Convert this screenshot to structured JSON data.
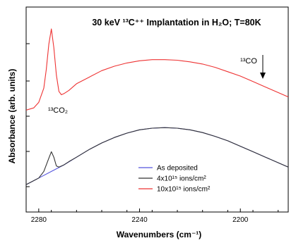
{
  "chart_data": {
    "type": "line",
    "title": "30 keV ¹³C⁺⁺ Implantation in H₂O; T=80K",
    "xlabel": "Wavenumbers (cm⁻¹)",
    "ylabel": "Absorbance (arb. units)",
    "xlim": [
      2285,
      2181
    ],
    "x_reversed": true,
    "x_ticks": [
      2280,
      2240,
      2200
    ],
    "x_tick_labels": [
      "2280",
      "2240",
      "2200"
    ],
    "y_ticklabels_shown": false,
    "legend_position": "bottom-right",
    "annotations": [
      {
        "text": "¹³CO",
        "note_arrow": "down"
      },
      {
        "text": "¹³CO₂"
      }
    ],
    "series": [
      {
        "name": "As deposited",
        "color": "#5555dd",
        "x": [
          2285,
          2280,
          2275,
          2270,
          2265,
          2260,
          2255,
          2250,
          2245,
          2240,
          2235,
          2230,
          2225,
          2220,
          2215,
          2210,
          2205,
          2200,
          2195,
          2190,
          2185,
          2181
        ],
        "y": [
          0.1,
          0.16,
          0.22,
          0.28,
          0.35,
          0.42,
          0.48,
          0.53,
          0.57,
          0.6,
          0.615,
          0.62,
          0.615,
          0.6,
          0.575,
          0.54,
          0.5,
          0.45,
          0.4,
          0.35,
          0.3,
          0.26
        ]
      },
      {
        "name": "4x10¹⁵ ions/cm²",
        "color": "#333333",
        "x": [
          2285,
          2280,
          2278,
          2276,
          2275,
          2274,
          2273,
          2272,
          2270,
          2268,
          2265,
          2260,
          2255,
          2250,
          2245,
          2240,
          2235,
          2230,
          2225,
          2220,
          2215,
          2210,
          2205,
          2200,
          2195,
          2190,
          2185,
          2181
        ],
        "y": [
          0.1,
          0.16,
          0.22,
          0.34,
          0.4,
          0.35,
          0.27,
          0.26,
          0.28,
          0.31,
          0.35,
          0.42,
          0.48,
          0.53,
          0.57,
          0.6,
          0.615,
          0.62,
          0.615,
          0.6,
          0.575,
          0.54,
          0.5,
          0.45,
          0.4,
          0.35,
          0.3,
          0.26
        ]
      },
      {
        "name": "10x10¹⁵ ions/cm²",
        "color": "#ee3333",
        "x": [
          2285,
          2282,
          2280,
          2278,
          2277,
          2276,
          2275,
          2274,
          2273,
          2272,
          2271,
          2270,
          2268,
          2265,
          2260,
          2255,
          2250,
          2245,
          2240,
          2235,
          2230,
          2225,
          2220,
          2215,
          2210,
          2205,
          2200,
          2195,
          2190,
          2185,
          2181
        ],
        "y": [
          0.78,
          0.8,
          0.85,
          0.98,
          1.15,
          1.38,
          1.52,
          1.35,
          1.1,
          0.95,
          0.92,
          0.93,
          0.96,
          1.02,
          1.08,
          1.14,
          1.18,
          1.21,
          1.23,
          1.24,
          1.24,
          1.235,
          1.22,
          1.2,
          1.17,
          1.13,
          1.09,
          1.04,
          0.99,
          0.94,
          0.9
        ]
      }
    ],
    "ylim": [
      -0.15,
      1.72
    ]
  }
}
